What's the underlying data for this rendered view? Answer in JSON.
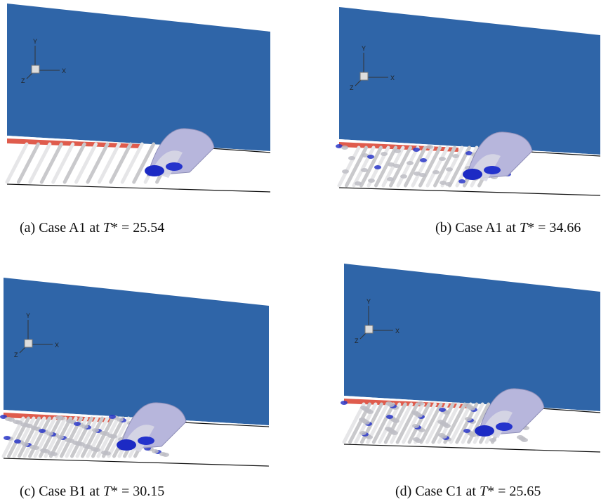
{
  "panels": [
    {
      "axes": {
        "y": "Y",
        "x": "X",
        "z": "Z"
      },
      "caption": {
        "prefix": "(a) Case A1 at ",
        "variable": "T",
        "suffix": "* = 25.54"
      }
    },
    {
      "axes": {
        "y": "Y",
        "x": "X",
        "z": "Z"
      },
      "caption": {
        "prefix": "(b) Case A1 at ",
        "variable": "T",
        "suffix": "* = 34.66"
      }
    },
    {
      "axes": {
        "y": "Y",
        "x": "X",
        "z": "Z"
      },
      "caption": {
        "prefix": "(c) Case B1 at ",
        "variable": "T",
        "suffix": "* = 30.15"
      }
    },
    {
      "axes": {
        "y": "Y",
        "x": "X",
        "z": "Z"
      },
      "caption": {
        "prefix": "(d) Case C1 at ",
        "variable": "T",
        "suffix": "* = 25.65"
      }
    }
  ]
}
